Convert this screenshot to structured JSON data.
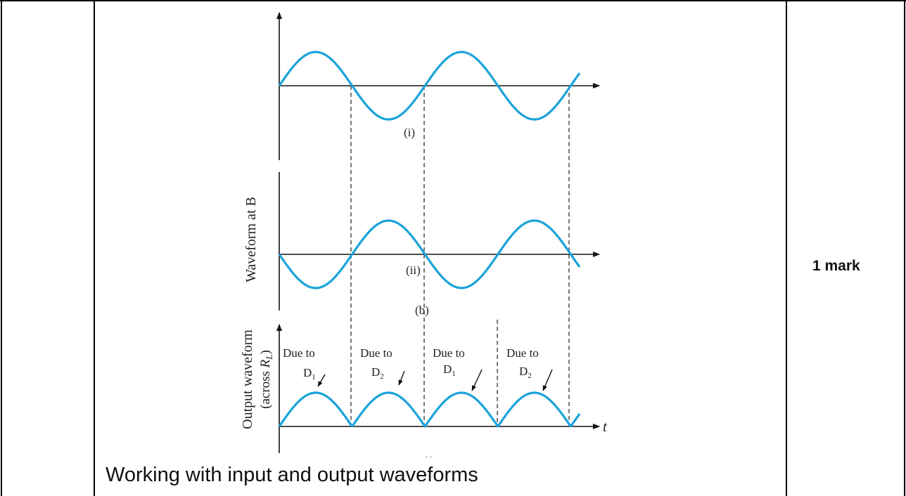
{
  "figure": {
    "label_i": "(i)",
    "label_ii": "(ii)",
    "label_b": "(b)",
    "ylabel_middle": "Waveform at B",
    "ylabel_bottom_line1": "Output waveform",
    "ylabel_bottom_line2_prefix": "(across ",
    "ylabel_bottom_line2_var": "R",
    "ylabel_bottom_line2_sub": "L",
    "ylabel_bottom_line2_suffix": ")",
    "t_axis_label": "t",
    "annotations": [
      {
        "text": "Due to",
        "diode": "D",
        "sub": "1"
      },
      {
        "text": "Due to",
        "diode": "D",
        "sub": "2"
      },
      {
        "text": "Due to",
        "diode": "D",
        "sub": "1"
      },
      {
        "text": "Due to",
        "diode": "D",
        "sub": "2"
      }
    ],
    "wave_color": "#1aa3d9"
  },
  "caption": "Working with input and output waveforms",
  "mark": "1 mark"
}
